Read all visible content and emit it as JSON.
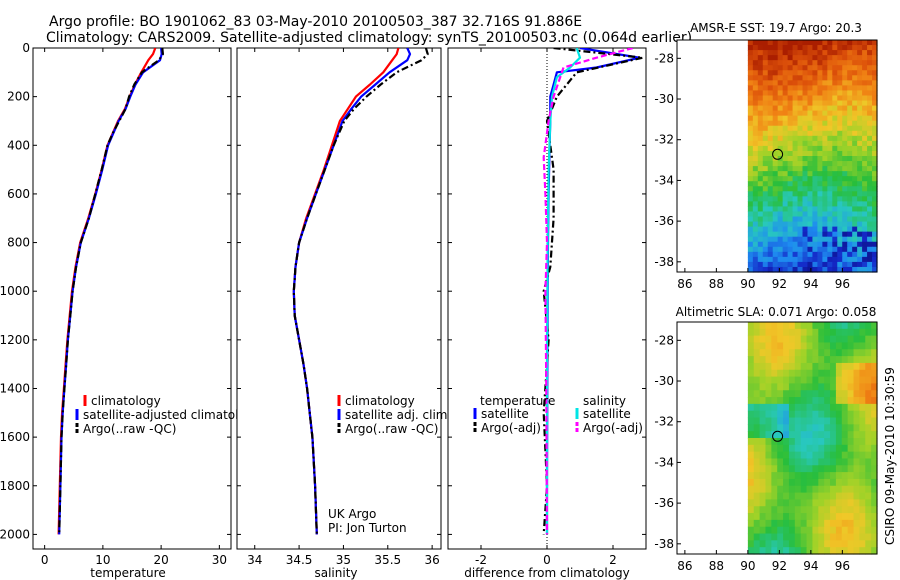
{
  "header": {
    "title": "Argo profile: BO 1901062_83 03-May-2010 20100503_387 32.716S 91.886E",
    "subtitle": "Climatology: CARS2009. Satellite-adjusted climatology: synTS_20100503.nc (0.064d earlier)"
  },
  "colors": {
    "climatology": "#ff0000",
    "satellite": "#0000ff",
    "argo": "#000000",
    "sat_salinity": "#00e5e5",
    "argo_salinity": "#ff00ff"
  },
  "chart_data": [
    {
      "type": "line",
      "id": "temperature",
      "xlabel": "temperature",
      "ylabel": "",
      "xlim": [
        -2,
        32
      ],
      "ylim": [
        2060,
        0
      ],
      "xticks": [
        0,
        10,
        20,
        30
      ],
      "yticks": [
        0,
        200,
        400,
        600,
        800,
        1000,
        1200,
        1400,
        1600,
        1800,
        2000
      ],
      "legend": {
        "placement": "lower-middle",
        "entries": [
          "climatology",
          "satellite-adjusted climatology",
          "Argo(..raw -QC)"
        ]
      },
      "series": [
        {
          "name": "climatology",
          "style": "solid",
          "x": [
            19.0,
            18.6,
            17.8,
            16.6,
            15.5,
            14.6,
            13.8,
            12.6,
            11.7,
            10.8,
            9.8,
            8.7,
            7.5,
            6.1,
            5.3,
            4.7,
            4.3,
            3.9,
            3.6,
            3.3,
            3.0,
            2.8,
            2.6,
            2.4
          ],
          "y": [
            0,
            25,
            50,
            100,
            150,
            200,
            250,
            300,
            350,
            400,
            500,
            600,
            700,
            800,
            900,
            1000,
            1100,
            1200,
            1300,
            1400,
            1500,
            1600,
            1800,
            2000
          ]
        },
        {
          "name": "satellite-adjusted climatology",
          "style": "solid",
          "x": [
            20.0,
            20.1,
            19.8,
            16.9,
            15.6,
            14.7,
            13.9,
            12.7,
            11.8,
            10.9,
            9.9,
            8.8,
            7.6,
            6.2,
            5.4,
            4.8,
            4.4,
            4.0,
            3.7,
            3.4,
            3.1,
            2.9,
            2.7,
            2.5
          ],
          "y": [
            0,
            25,
            50,
            100,
            150,
            200,
            250,
            300,
            350,
            400,
            500,
            600,
            700,
            800,
            900,
            1000,
            1100,
            1200,
            1300,
            1400,
            1500,
            1600,
            1800,
            2000
          ]
        },
        {
          "name": "Argo(..raw -QC)",
          "style": "dashdot",
          "x": [
            20.2,
            20.3,
            19.6,
            16.7,
            15.4,
            14.5,
            13.9,
            12.8,
            11.7,
            10.8,
            9.8,
            8.7,
            7.6,
            6.2,
            5.4,
            4.8,
            4.4,
            4.0,
            3.7,
            3.4,
            3.1,
            2.9,
            2.7,
            2.5
          ],
          "y": [
            0,
            25,
            50,
            100,
            150,
            200,
            250,
            300,
            350,
            400,
            500,
            600,
            700,
            800,
            900,
            1000,
            1100,
            1200,
            1300,
            1400,
            1500,
            1600,
            1800,
            2000
          ]
        }
      ]
    },
    {
      "type": "line",
      "id": "salinity",
      "xlabel": "salinity",
      "ylabel": "",
      "xlim": [
        33.8,
        36.1
      ],
      "ylim": [
        2060,
        0
      ],
      "xticks": [
        34,
        34.5,
        35,
        35.5,
        36
      ],
      "yticks": [
        0,
        200,
        400,
        600,
        800,
        1000,
        1200,
        1400,
        1600,
        1800,
        2000
      ],
      "legend": {
        "placement": "lower-right",
        "entries": [
          "climatology",
          "satellite adj. clim.",
          "Argo(..raw -QC)"
        ]
      },
      "annotation": [
        "UK Argo",
        "PI: Jon Turton"
      ],
      "series": [
        {
          "name": "climatology",
          "style": "solid",
          "x": [
            35.62,
            35.6,
            35.55,
            35.45,
            35.3,
            35.14,
            35.05,
            34.96,
            34.87,
            34.78,
            34.68,
            34.58,
            34.5,
            34.46,
            34.44,
            34.45,
            34.5,
            34.55,
            34.59,
            34.62,
            34.65,
            34.68,
            34.7
          ],
          "y": [
            0,
            25,
            50,
            100,
            150,
            200,
            250,
            300,
            400,
            500,
            600,
            700,
            800,
            900,
            1000,
            1100,
            1200,
            1300,
            1400,
            1500,
            1600,
            1800,
            2000
          ]
        },
        {
          "name": "satellite adj. clim.",
          "style": "solid",
          "x": [
            35.72,
            35.75,
            35.72,
            35.52,
            35.36,
            35.2,
            35.09,
            34.99,
            34.89,
            34.79,
            34.69,
            34.59,
            34.5,
            34.46,
            34.44,
            34.45,
            34.5,
            34.55,
            34.59,
            34.62,
            34.65,
            34.68,
            34.7
          ],
          "y": [
            0,
            25,
            50,
            100,
            150,
            200,
            250,
            300,
            400,
            500,
            600,
            700,
            800,
            900,
            1000,
            1100,
            1200,
            1300,
            1400,
            1500,
            1600,
            1800,
            2000
          ]
        },
        {
          "name": "Argo(..raw -QC)",
          "style": "dashdot",
          "x": [
            35.93,
            35.95,
            35.88,
            35.6,
            35.42,
            35.26,
            35.12,
            35.01,
            34.89,
            34.79,
            34.69,
            34.59,
            34.5,
            34.46,
            34.44,
            34.45,
            34.5,
            34.55,
            34.59,
            34.62,
            34.65,
            34.68,
            34.7
          ],
          "y": [
            0,
            25,
            50,
            100,
            150,
            200,
            250,
            300,
            400,
            500,
            600,
            700,
            800,
            900,
            1000,
            1100,
            1200,
            1300,
            1400,
            1500,
            1600,
            1800,
            2000
          ]
        }
      ]
    },
    {
      "type": "line",
      "id": "difference",
      "xlabel": "difference from climatology",
      "ylabel": "",
      "xlim": [
        -3,
        3
      ],
      "ylim": [
        2060,
        0
      ],
      "xticks": [
        -2,
        0,
        2
      ],
      "yticks": [
        0,
        200,
        400,
        600,
        800,
        1000,
        1200,
        1400,
        1600,
        1800,
        2000
      ],
      "legend": {
        "placement": "lower-middle",
        "groups": [
          "temperature",
          "salinity"
        ],
        "entries": [
          "satellite",
          "Argo(-adj)",
          "satellite",
          "Argo(-adj)"
        ]
      },
      "series": [
        {
          "name": "satellite",
          "group": "temperature",
          "style": "solid",
          "x": [
            1.0,
            2.8,
            1.5,
            0.3,
            0.2,
            0.1,
            0.1,
            0.08,
            0.05,
            0.03,
            0.02,
            0.01,
            0.0,
            0.0
          ],
          "y": [
            0,
            40,
            80,
            100,
            150,
            200,
            300,
            400,
            600,
            800,
            1000,
            1400,
            1800,
            2000
          ]
        },
        {
          "name": "Argo(-adj)",
          "group": "temperature",
          "style": "dashdot",
          "x": [
            0.2,
            2.9,
            0.9,
            0.6,
            0.3,
            0.0,
            0.1,
            0.2,
            0.2,
            0.1,
            -0.1,
            0.05,
            -0.1,
            0.0,
            -0.1
          ],
          "y": [
            0,
            40,
            100,
            150,
            200,
            300,
            400,
            500,
            700,
            900,
            1000,
            1200,
            1500,
            1800,
            2000
          ]
        },
        {
          "name": "satellite",
          "group": "salinity",
          "style": "solid",
          "x": [
            0.9,
            1.0,
            0.7,
            0.3,
            0.15,
            0.1,
            0.05,
            0.02,
            0.0,
            0.0,
            0.0
          ],
          "y": [
            0,
            40,
            80,
            120,
            200,
            300,
            500,
            800,
            1200,
            1600,
            2000
          ]
        },
        {
          "name": "Argo(-adj)",
          "group": "salinity",
          "style": "dashed",
          "x": [
            2.6,
            1.5,
            0.5,
            0.2,
            0.05,
            -0.1,
            -0.05,
            0.0,
            -0.05,
            -0.02,
            0.0
          ],
          "y": [
            0,
            40,
            80,
            200,
            300,
            450,
            600,
            800,
            1000,
            1400,
            2000
          ]
        }
      ]
    },
    {
      "type": "heatmap",
      "id": "sst_map",
      "title": "AMSR-E SST: 19.7 Argo: 20.3",
      "xlim": [
        85.5,
        98.2
      ],
      "ylim": [
        -38.5,
        -27.1
      ],
      "xticks": [
        86,
        88,
        90,
        92,
        94,
        96
      ],
      "yticks": [
        -28,
        -30,
        -32,
        -34,
        -36,
        -38
      ],
      "data_xlim": [
        90,
        98.2
      ],
      "marker": {
        "lon": 91.886,
        "lat": -32.716
      }
    },
    {
      "type": "heatmap",
      "id": "sla_map",
      "title": "Altimetric SLA: 0.071 Argo: 0.058",
      "xlim": [
        85.5,
        98.2
      ],
      "ylim": [
        -38.5,
        -27.1
      ],
      "xticks": [
        86,
        88,
        90,
        92,
        94,
        96
      ],
      "yticks": [
        -28,
        -30,
        -32,
        -34,
        -36,
        -38
      ],
      "data_xlim": [
        90,
        98.2
      ],
      "marker": {
        "lon": 91.886,
        "lat": -32.716
      }
    }
  ],
  "footer": {
    "stamp": "CSIRO 09-May-2010 10:30:59"
  }
}
